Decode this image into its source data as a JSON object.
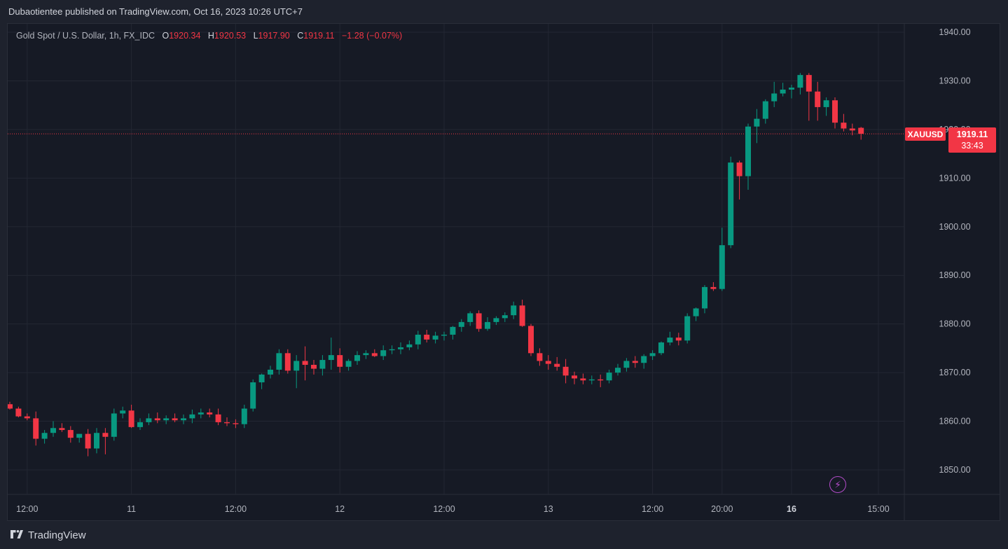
{
  "header": {
    "published_text": "Dubaotientee published on TradingView.com, Oct 16, 2023 10:26 UTC+7"
  },
  "legend": {
    "symbol": "Gold Spot / U.S. Dollar, 1h, FX_IDC",
    "o_label": "O",
    "o_value": "1920.34",
    "h_label": "H",
    "h_value": "1920.53",
    "l_label": "L",
    "l_value": "1917.90",
    "c_label": "C",
    "c_value": "1919.11",
    "change": "−1.28 (−0.07%)"
  },
  "price_line": {
    "ticker": "XAUUSD",
    "price": "1919.11",
    "countdown": "33:43"
  },
  "footer": {
    "brand": "TradingView"
  },
  "icons": {
    "alert": "lightning-icon",
    "logo": "tradingview-logo-icon"
  },
  "colors": {
    "up": "#089981",
    "down": "#f23645",
    "background": "#161a25",
    "grid": "#232733",
    "axis_text": "#b2b5be",
    "bolt": "#b34cc9"
  },
  "chart_data": {
    "type": "candlestick",
    "title": "Gold Spot / U.S. Dollar, 1h, FX_IDC",
    "ylim": [
      1845,
      1942
    ],
    "y_ticks": [
      "1940.00",
      "1930.00",
      "1920.00",
      "1910.00",
      "1900.00",
      "1890.00",
      "1880.00",
      "1870.00",
      "1860.00",
      "1850.00"
    ],
    "x_ticks": [
      {
        "label": "12:00",
        "bar": 2,
        "bold": false
      },
      {
        "label": "11",
        "bar": 14,
        "bold": false
      },
      {
        "label": "12:00",
        "bar": 26,
        "bold": false
      },
      {
        "label": "12",
        "bar": 38,
        "bold": false
      },
      {
        "label": "12:00",
        "bar": 50,
        "bold": false
      },
      {
        "label": "13",
        "bar": 62,
        "bold": false
      },
      {
        "label": "12:00",
        "bar": 74,
        "bold": false
      },
      {
        "label": "20:00",
        "bar": 82,
        "bold": false
      },
      {
        "label": "16",
        "bar": 90,
        "bold": true
      },
      {
        "label": "15:00",
        "bar": 100,
        "bold": false
      }
    ],
    "last_price": 1919.11,
    "ohlc": [
      [
        1863.5,
        1864.0,
        1862.4,
        1862.6
      ],
      [
        1862.6,
        1863.0,
        1860.8,
        1861.0
      ],
      [
        1861.0,
        1861.6,
        1860.2,
        1860.6
      ],
      [
        1860.6,
        1862.0,
        1855.0,
        1856.4
      ],
      [
        1856.4,
        1858.2,
        1855.4,
        1857.6
      ],
      [
        1857.6,
        1860.0,
        1856.8,
        1858.6
      ],
      [
        1858.6,
        1859.6,
        1857.8,
        1858.2
      ],
      [
        1858.2,
        1859.0,
        1855.6,
        1856.6
      ],
      [
        1856.6,
        1857.4,
        1855.6,
        1857.4
      ],
      [
        1857.4,
        1858.4,
        1852.8,
        1854.4
      ],
      [
        1854.4,
        1858.6,
        1853.4,
        1857.6
      ],
      [
        1857.6,
        1858.6,
        1853.2,
        1856.8
      ],
      [
        1856.8,
        1862.6,
        1856.0,
        1861.6
      ],
      [
        1861.6,
        1863.0,
        1860.6,
        1862.2
      ],
      [
        1862.2,
        1863.4,
        1858.6,
        1858.8
      ],
      [
        1858.8,
        1860.6,
        1858.2,
        1859.8
      ],
      [
        1859.8,
        1861.6,
        1859.2,
        1860.6
      ],
      [
        1860.6,
        1861.8,
        1859.6,
        1860.2
      ],
      [
        1860.2,
        1861.2,
        1859.4,
        1860.6
      ],
      [
        1860.6,
        1861.6,
        1859.8,
        1860.2
      ],
      [
        1860.2,
        1861.4,
        1859.4,
        1860.6
      ],
      [
        1860.6,
        1862.4,
        1859.6,
        1861.4
      ],
      [
        1861.4,
        1862.6,
        1860.6,
        1861.8
      ],
      [
        1861.8,
        1862.6,
        1860.8,
        1861.4
      ],
      [
        1861.4,
        1862.6,
        1859.2,
        1859.8
      ],
      [
        1859.8,
        1860.8,
        1859.0,
        1859.6
      ],
      [
        1859.6,
        1860.4,
        1858.6,
        1859.4
      ],
      [
        1859.4,
        1863.4,
        1858.6,
        1862.6
      ],
      [
        1862.6,
        1868.6,
        1862.0,
        1868.0
      ],
      [
        1868.0,
        1869.8,
        1866.6,
        1869.6
      ],
      [
        1869.6,
        1871.4,
        1868.8,
        1870.6
      ],
      [
        1870.6,
        1874.8,
        1869.6,
        1874.0
      ],
      [
        1874.0,
        1874.8,
        1869.8,
        1870.4
      ],
      [
        1870.4,
        1873.6,
        1866.8,
        1872.4
      ],
      [
        1872.4,
        1875.4,
        1868.4,
        1871.6
      ],
      [
        1871.6,
        1872.6,
        1869.6,
        1870.8
      ],
      [
        1870.8,
        1873.6,
        1869.4,
        1872.6
      ],
      [
        1872.6,
        1877.2,
        1870.6,
        1873.6
      ],
      [
        1873.6,
        1875.0,
        1870.0,
        1871.2
      ],
      [
        1871.2,
        1872.8,
        1870.4,
        1872.4
      ],
      [
        1872.4,
        1874.4,
        1871.6,
        1873.6
      ],
      [
        1873.6,
        1874.6,
        1872.8,
        1874.0
      ],
      [
        1874.0,
        1874.8,
        1873.2,
        1873.4
      ],
      [
        1873.4,
        1875.6,
        1872.6,
        1874.6
      ],
      [
        1874.6,
        1875.6,
        1873.8,
        1874.8
      ],
      [
        1874.8,
        1876.2,
        1873.8,
        1875.2
      ],
      [
        1875.2,
        1876.6,
        1874.6,
        1875.8
      ],
      [
        1875.8,
        1878.6,
        1874.8,
        1877.8
      ],
      [
        1877.8,
        1878.8,
        1876.2,
        1876.8
      ],
      [
        1876.8,
        1878.4,
        1876.0,
        1877.6
      ],
      [
        1877.6,
        1878.4,
        1876.6,
        1877.8
      ],
      [
        1877.8,
        1879.6,
        1876.8,
        1879.4
      ],
      [
        1879.4,
        1881.0,
        1878.4,
        1880.4
      ],
      [
        1880.4,
        1882.6,
        1879.6,
        1882.2
      ],
      [
        1882.2,
        1882.8,
        1878.4,
        1879.0
      ],
      [
        1879.0,
        1881.4,
        1878.6,
        1880.4
      ],
      [
        1880.4,
        1881.6,
        1879.8,
        1881.2
      ],
      [
        1881.2,
        1882.4,
        1880.4,
        1881.8
      ],
      [
        1881.8,
        1884.6,
        1881.0,
        1883.8
      ],
      [
        1883.8,
        1885.0,
        1879.4,
        1879.6
      ],
      [
        1879.6,
        1880.0,
        1873.4,
        1874.0
      ],
      [
        1874.0,
        1875.0,
        1871.4,
        1872.4
      ],
      [
        1872.4,
        1873.6,
        1870.6,
        1871.8
      ],
      [
        1871.8,
        1873.2,
        1870.4,
        1871.2
      ],
      [
        1871.2,
        1872.8,
        1867.8,
        1869.4
      ],
      [
        1869.4,
        1870.2,
        1867.6,
        1868.8
      ],
      [
        1868.8,
        1869.8,
        1867.6,
        1868.4
      ],
      [
        1868.4,
        1869.4,
        1867.6,
        1868.6
      ],
      [
        1868.6,
        1869.6,
        1867.0,
        1868.4
      ],
      [
        1868.4,
        1870.6,
        1867.8,
        1870.0
      ],
      [
        1870.0,
        1871.8,
        1869.4,
        1871.0
      ],
      [
        1871.0,
        1873.0,
        1870.2,
        1872.4
      ],
      [
        1872.4,
        1873.4,
        1871.0,
        1872.0
      ],
      [
        1872.0,
        1873.8,
        1870.8,
        1873.4
      ],
      [
        1873.4,
        1874.6,
        1872.6,
        1874.0
      ],
      [
        1874.0,
        1876.4,
        1873.6,
        1876.2
      ],
      [
        1876.2,
        1878.4,
        1875.6,
        1877.2
      ],
      [
        1877.2,
        1878.2,
        1875.6,
        1876.6
      ],
      [
        1876.6,
        1882.2,
        1876.0,
        1881.6
      ],
      [
        1881.6,
        1883.4,
        1880.6,
        1883.2
      ],
      [
        1883.2,
        1888.0,
        1882.2,
        1887.6
      ],
      [
        1887.6,
        1888.6,
        1886.8,
        1887.2
      ],
      [
        1887.2,
        1899.8,
        1886.8,
        1896.2
      ],
      [
        1896.2,
        1914.4,
        1895.6,
        1913.2
      ],
      [
        1913.2,
        1913.6,
        1905.6,
        1910.4
      ],
      [
        1910.4,
        1921.2,
        1907.6,
        1920.6
      ],
      [
        1920.6,
        1924.2,
        1917.2,
        1922.2
      ],
      [
        1922.2,
        1926.2,
        1921.2,
        1925.8
      ],
      [
        1925.8,
        1929.8,
        1924.6,
        1927.4
      ],
      [
        1927.4,
        1929.6,
        1926.8,
        1928.2
      ],
      [
        1928.2,
        1929.2,
        1926.4,
        1928.6
      ],
      [
        1928.6,
        1931.6,
        1927.2,
        1931.2
      ],
      [
        1931.2,
        1931.6,
        1921.8,
        1927.8
      ],
      [
        1927.8,
        1929.8,
        1921.8,
        1924.6
      ],
      [
        1924.6,
        1926.6,
        1922.8,
        1926.0
      ],
      [
        1926.0,
        1926.6,
        1920.2,
        1921.4
      ],
      [
        1921.4,
        1923.2,
        1919.6,
        1920.2
      ],
      [
        1920.2,
        1921.2,
        1918.8,
        1919.8
      ],
      [
        1920.34,
        1920.53,
        1917.9,
        1919.11
      ]
    ]
  }
}
